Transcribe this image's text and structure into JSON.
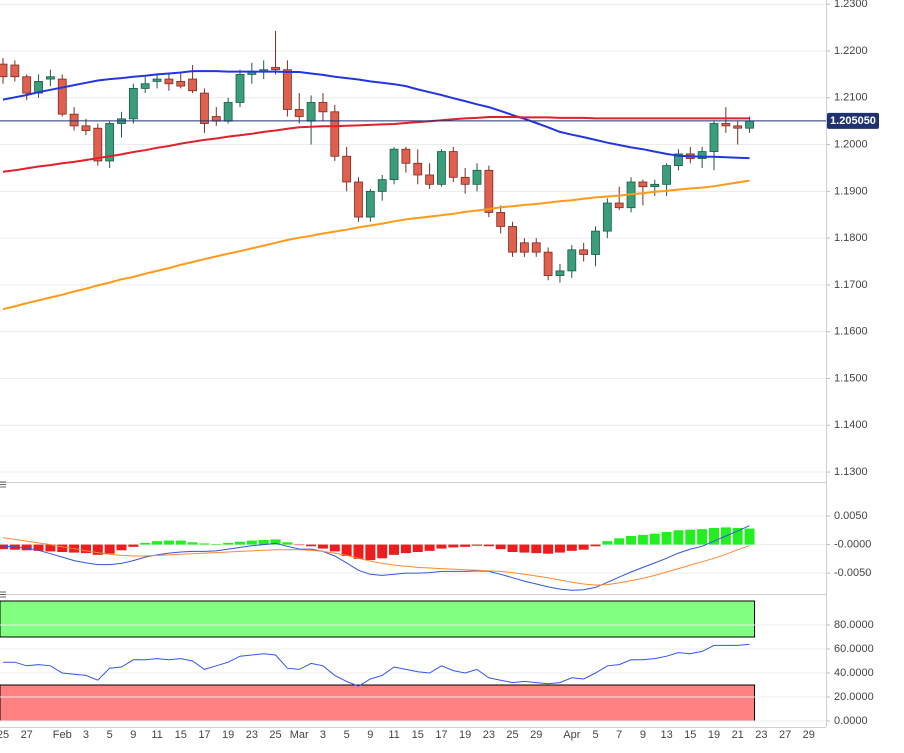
{
  "chart_data": [
    {
      "type": "candlestick",
      "up_color": "#3a9e7a",
      "down_color": "#e0604e",
      "open": [
        1.2172,
        1.217,
        1.2145,
        1.211,
        1.214,
        1.214,
        1.2065,
        1.204,
        1.2035,
        1.1965,
        1.2045,
        1.2055,
        1.212,
        1.2135,
        1.214,
        1.2135,
        1.214,
        1.211,
        1.206,
        1.205,
        1.209,
        1.215,
        1.2155,
        1.2165,
        1.216,
        1.2075,
        1.205,
        1.209,
        1.207,
        1.1975,
        1.192,
        1.1845,
        1.19,
        1.1925,
        1.199,
        1.196,
        1.1935,
        1.1915,
        1.1985,
        1.193,
        1.1915,
        1.1945,
        1.1855,
        1.1825,
        1.179,
        1.179,
        1.177,
        1.172,
        1.173,
        1.1775,
        1.1765,
        1.1815,
        1.1875,
        1.1865,
        1.192,
        1.191,
        1.1915,
        1.1955,
        1.198,
        1.197,
        1.1985,
        1.2045,
        1.204,
        1.2035,
        null,
        null,
        null,
        null,
        null
      ],
      "high": [
        1.2185,
        1.218,
        1.215,
        1.215,
        1.216,
        1.215,
        1.208,
        1.2055,
        1.2045,
        1.205,
        1.207,
        1.213,
        1.2145,
        1.215,
        1.215,
        1.2155,
        1.217,
        1.212,
        1.208,
        1.21,
        1.216,
        1.2175,
        1.218,
        1.2243,
        1.218,
        1.211,
        1.2105,
        1.211,
        1.2085,
        1.1995,
        1.193,
        1.1905,
        1.1935,
        1.1995,
        1.1995,
        1.199,
        1.196,
        1.199,
        1.1995,
        1.195,
        1.196,
        1.1955,
        1.187,
        1.1835,
        1.18,
        1.18,
        1.178,
        1.1745,
        1.1785,
        1.179,
        1.1825,
        1.1885,
        1.191,
        1.193,
        1.1925,
        1.1925,
        1.196,
        1.199,
        1.1995,
        1.1995,
        1.205,
        1.208,
        1.205,
        1.206,
        null,
        null,
        null,
        null,
        null
      ],
      "low": [
        1.213,
        1.2135,
        1.2095,
        1.21,
        1.2125,
        1.206,
        1.203,
        1.202,
        1.1955,
        1.195,
        1.2015,
        1.2045,
        1.211,
        1.212,
        1.2115,
        1.212,
        1.211,
        1.2025,
        1.204,
        1.2045,
        1.208,
        1.213,
        1.214,
        1.215,
        1.206,
        1.2045,
        1.2,
        1.205,
        1.1965,
        1.19,
        1.1835,
        1.1835,
        1.188,
        1.1915,
        1.194,
        1.1915,
        1.1905,
        1.191,
        1.192,
        1.1895,
        1.19,
        1.1845,
        1.181,
        1.176,
        1.176,
        1.176,
        1.171,
        1.1705,
        1.1715,
        1.175,
        1.174,
        1.18,
        1.186,
        1.1855,
        1.187,
        1.189,
        1.189,
        1.1945,
        1.196,
        1.195,
        1.1945,
        1.2025,
        1.2,
        1.2025,
        null,
        null,
        null,
        null,
        null
      ],
      "close": [
        1.2145,
        1.2145,
        1.211,
        1.2135,
        1.2145,
        1.2065,
        1.204,
        1.203,
        1.1965,
        1.2045,
        1.2055,
        1.212,
        1.213,
        1.214,
        1.213,
        1.2125,
        1.2115,
        1.2045,
        1.205,
        1.209,
        1.215,
        1.2155,
        1.216,
        1.216,
        1.2075,
        1.206,
        1.209,
        1.207,
        1.1975,
        1.192,
        1.1845,
        1.19,
        1.1925,
        1.199,
        1.196,
        1.1935,
        1.1915,
        1.1985,
        1.193,
        1.1915,
        1.1945,
        1.1855,
        1.1825,
        1.177,
        1.177,
        1.177,
        1.172,
        1.173,
        1.1775,
        1.1765,
        1.1815,
        1.1875,
        1.1865,
        1.192,
        1.191,
        1.1915,
        1.1955,
        1.198,
        1.197,
        1.1985,
        1.2045,
        1.204,
        1.2035,
        1.205,
        null,
        null,
        null,
        null,
        null
      ],
      "series": [
        {
          "color": "#2236e0",
          "values": [
            1.2096,
            1.2101,
            1.2106,
            1.2112,
            1.2117,
            1.2122,
            1.2127,
            1.2132,
            1.2137,
            1.214,
            1.2142,
            1.2145,
            1.2147,
            1.215,
            1.2152,
            1.2154,
            1.2157,
            1.2157,
            1.2157,
            1.2156,
            1.2156,
            1.2156,
            1.2156,
            1.2156,
            1.2155,
            1.2155,
            1.2152,
            1.2149,
            1.2145,
            1.2142,
            1.2139,
            1.2135,
            1.2132,
            1.2129,
            1.2125,
            1.2118,
            1.2112,
            1.2106,
            1.2099,
            1.2093,
            1.2086,
            1.208,
            1.2072,
            1.2063,
            1.2055,
            1.2046,
            1.2037,
            1.2027,
            1.2021,
            1.2016,
            1.201,
            1.2004,
            1.1999,
            1.1994,
            1.199,
            1.1985,
            1.198,
            1.1976,
            1.1975,
            1.1974,
            1.1974,
            1.1973,
            1.1972,
            1.1971,
            null,
            null,
            null,
            null,
            null
          ]
        },
        {
          "color": "#e0202a",
          "values": [
            1.1942,
            1.1945,
            1.1949,
            1.1953,
            1.1956,
            1.196,
            1.1963,
            1.1967,
            1.1971,
            1.1975,
            1.1979,
            1.1984,
            1.1988,
            1.1993,
            1.1997,
            1.2002,
            1.2006,
            1.201,
            1.2013,
            1.2017,
            1.202,
            1.2023,
            1.2027,
            1.203,
            1.2034,
            1.2037,
            1.2038,
            1.2039,
            1.2039,
            1.204,
            1.2041,
            1.2042,
            1.2043,
            1.2044,
            1.2046,
            1.2048,
            1.205,
            1.2052,
            1.2054,
            1.2056,
            1.2057,
            1.2059,
            1.2059,
            1.2059,
            1.2058,
            1.2058,
            1.2058,
            1.2057,
            1.2057,
            1.2057,
            1.2056,
            1.2056,
            1.2056,
            1.2056,
            1.2056,
            1.2056,
            1.2056,
            1.2056,
            1.2056,
            1.2056,
            1.2056,
            1.2056,
            1.2056,
            1.2056,
            null,
            null,
            null,
            null,
            null
          ]
        },
        {
          "color": "#ff9a1a",
          "values": [
            1.1648,
            1.1654,
            1.1661,
            1.1667,
            1.1673,
            1.1679,
            1.1686,
            1.1692,
            1.1699,
            1.1705,
            1.1712,
            1.1717,
            1.1724,
            1.173,
            1.1736,
            1.1743,
            1.1749,
            1.1755,
            1.1761,
            1.1767,
            1.1772,
            1.1778,
            1.1784,
            1.179,
            1.1796,
            1.1801,
            1.1805,
            1.181,
            1.1814,
            1.1818,
            1.1823,
            1.1827,
            1.1831,
            1.1836,
            1.184,
            1.1843,
            1.1846,
            1.1849,
            1.1852,
            1.1856,
            1.1859,
            1.1862,
            1.1866,
            1.1868,
            1.1871,
            1.1873,
            1.1876,
            1.1879,
            1.1881,
            1.1884,
            1.1887,
            1.1889,
            1.1891,
            1.1894,
            1.1896,
            1.1899,
            1.1901,
            1.1904,
            1.1906,
            1.1908,
            1.1911,
            1.1915,
            1.1919,
            1.1923,
            null,
            null,
            null,
            null,
            null
          ]
        }
      ],
      "last_price": {
        "value": 1.20505,
        "label": "1.205050"
      },
      "last_price_color": "#1e3270",
      "ylim": [
        1.1283,
        1.2309
      ],
      "yticks": [
        {
          "value": 1.23,
          "label": "1.2300"
        },
        {
          "value": 1.22,
          "label": "1.2200"
        },
        {
          "value": 1.21,
          "label": "1.2100"
        },
        {
          "value": 1.2,
          "label": "1.2000"
        },
        {
          "value": 1.19,
          "label": "1.1900"
        },
        {
          "value": 1.18,
          "label": "1.1800"
        },
        {
          "value": 1.17,
          "label": "1.1700"
        },
        {
          "value": 1.16,
          "label": "1.1600"
        },
        {
          "value": 1.15,
          "label": "1.1500"
        },
        {
          "value": 1.14,
          "label": "1.1400"
        },
        {
          "value": 1.13,
          "label": "1.1300"
        }
      ],
      "grid": true
    },
    {
      "type": "macd",
      "histogram": {
        "up_color": "#22ee22",
        "down_color": "#ee1c1c",
        "values": [
          -0.0008,
          -0.0009,
          -0.001,
          -0.0011,
          -0.0012,
          -0.0013,
          -0.0014,
          -0.0015,
          -0.0018,
          -0.0016,
          -0.001,
          -0.0004,
          0.0003,
          0.0006,
          0.0007,
          0.0007,
          0.0004,
          0.0002,
          0.0001,
          0.0003,
          0.0005,
          0.0007,
          0.0008,
          0.0009,
          0.0004,
          -0.0001,
          -0.0003,
          -0.0007,
          -0.0012,
          -0.002,
          -0.0025,
          -0.0027,
          -0.0024,
          -0.0018,
          -0.0015,
          -0.0013,
          -0.0011,
          -0.0007,
          -0.0005,
          -0.0004,
          -0.0002,
          -0.0003,
          -0.0008,
          -0.0013,
          -0.0014,
          -0.0015,
          -0.0016,
          -0.0014,
          -0.0011,
          -0.0009,
          -0.0003,
          0.0006,
          0.0011,
          0.0015,
          0.0017,
          0.0019,
          0.0022,
          0.0025,
          0.0026,
          0.0027,
          0.0029,
          0.003,
          0.0029,
          0.0028,
          null,
          null,
          null,
          null,
          null
        ]
      },
      "series": [
        {
          "color": "#3355dd",
          "values": [
            -0.0003,
            -0.0004,
            -0.0006,
            -0.001,
            -0.0016,
            -0.0022,
            -0.0028,
            -0.0032,
            -0.0035,
            -0.0035,
            -0.0033,
            -0.0028,
            -0.0022,
            -0.0018,
            -0.0015,
            -0.0013,
            -0.0012,
            -0.0012,
            -0.0011,
            -0.0008,
            -0.0005,
            -0.0002,
            0.0,
            0.0002,
            -0.0003,
            -0.0008,
            -0.0008,
            -0.0012,
            -0.002,
            -0.0032,
            -0.0045,
            -0.0052,
            -0.0054,
            -0.0052,
            -0.005,
            -0.005,
            -0.0049,
            -0.0047,
            -0.0047,
            -0.0047,
            -0.0046,
            -0.0047,
            -0.0052,
            -0.0058,
            -0.0064,
            -0.0069,
            -0.0074,
            -0.0078,
            -0.008,
            -0.0079,
            -0.0075,
            -0.0066,
            -0.0057,
            -0.0048,
            -0.004,
            -0.0032,
            -0.0024,
            -0.0015,
            -0.0008,
            -0.0003,
            0.0006,
            0.0015,
            0.0024,
            0.0033,
            null,
            null,
            null,
            null,
            null
          ]
        },
        {
          "color": "#ff8833",
          "values": [
            0.0012,
            0.0009,
            0.0006,
            0.0003,
            0.0,
            -0.0004,
            -0.0007,
            -0.0011,
            -0.0014,
            -0.0017,
            -0.0019,
            -0.002,
            -0.002,
            -0.0019,
            -0.0018,
            -0.0017,
            -0.0016,
            -0.0015,
            -0.0014,
            -0.0013,
            -0.0012,
            -0.0011,
            -0.001,
            -0.0009,
            -0.0009,
            -0.0009,
            -0.001,
            -0.0012,
            -0.0015,
            -0.0019,
            -0.0024,
            -0.0029,
            -0.0033,
            -0.0036,
            -0.0038,
            -0.004,
            -0.0041,
            -0.0042,
            -0.0043,
            -0.0044,
            -0.0045,
            -0.0046,
            -0.0047,
            -0.0049,
            -0.0052,
            -0.0055,
            -0.0058,
            -0.0062,
            -0.0066,
            -0.0069,
            -0.0071,
            -0.007,
            -0.0067,
            -0.0063,
            -0.0059,
            -0.0054,
            -0.0048,
            -0.0042,
            -0.0036,
            -0.003,
            -0.0024,
            -0.0017,
            -0.0009,
            -0.0002,
            null,
            null,
            null,
            null,
            null
          ]
        }
      ],
      "ylim": [
        -0.0083,
        0.0099
      ],
      "yticks": [
        {
          "value": 0.005,
          "label": "0.0050"
        },
        {
          "value": 0,
          "label": "-0.0000"
        },
        {
          "value": -0.005,
          "label": "-0.0050"
        }
      ],
      "grid": true
    },
    {
      "type": "rsi",
      "categories": [
        "25",
        null,
        "27",
        null,
        null,
        "Feb",
        null,
        "3",
        null,
        "5",
        null,
        "9",
        null,
        "11",
        null,
        "15",
        null,
        "17",
        null,
        "19",
        null,
        "23",
        null,
        "25",
        null,
        "Mar",
        null,
        "3",
        null,
        "5",
        null,
        "9",
        null,
        "11",
        null,
        "15",
        null,
        "17",
        null,
        "19",
        null,
        "23",
        null,
        "25",
        null,
        "29",
        null,
        null,
        "Apr",
        null,
        "5",
        null,
        "7",
        null,
        "9",
        null,
        "13",
        null,
        "15",
        null,
        "19",
        null,
        "21",
        null,
        "23",
        null,
        "27",
        null,
        "29"
      ],
      "series": [
        {
          "color": "#3355ee",
          "values": [
            49,
            49,
            46,
            47,
            46,
            40,
            39,
            38,
            34,
            44,
            45,
            51,
            51,
            52,
            51,
            52,
            50,
            43,
            46,
            49,
            54,
            55,
            56,
            55,
            44,
            43,
            48,
            46,
            38,
            33,
            29,
            35,
            38,
            45,
            43,
            41,
            40,
            46,
            42,
            40,
            43,
            36,
            34,
            32,
            33,
            32,
            31,
            32,
            36,
            35,
            40,
            46,
            47,
            51,
            51,
            52,
            54,
            57,
            56,
            58,
            63,
            63,
            63,
            64,
            null,
            null,
            null,
            null,
            null
          ]
        }
      ],
      "overbought": [
        70,
        100
      ],
      "overbought_color": "#80ff80",
      "oversold": [
        0,
        30
      ],
      "oversold_color": "#ff8080",
      "ylim": [
        -5,
        102.5
      ],
      "yticks": [
        {
          "value": 80,
          "label": "80.0000"
        },
        {
          "value": 60,
          "label": "60.0000"
        },
        {
          "value": 40,
          "label": "40.0000"
        },
        {
          "value": 20,
          "label": "20.0000"
        },
        {
          "value": 0,
          "label": "0.0000"
        }
      ],
      "grid": true
    }
  ]
}
